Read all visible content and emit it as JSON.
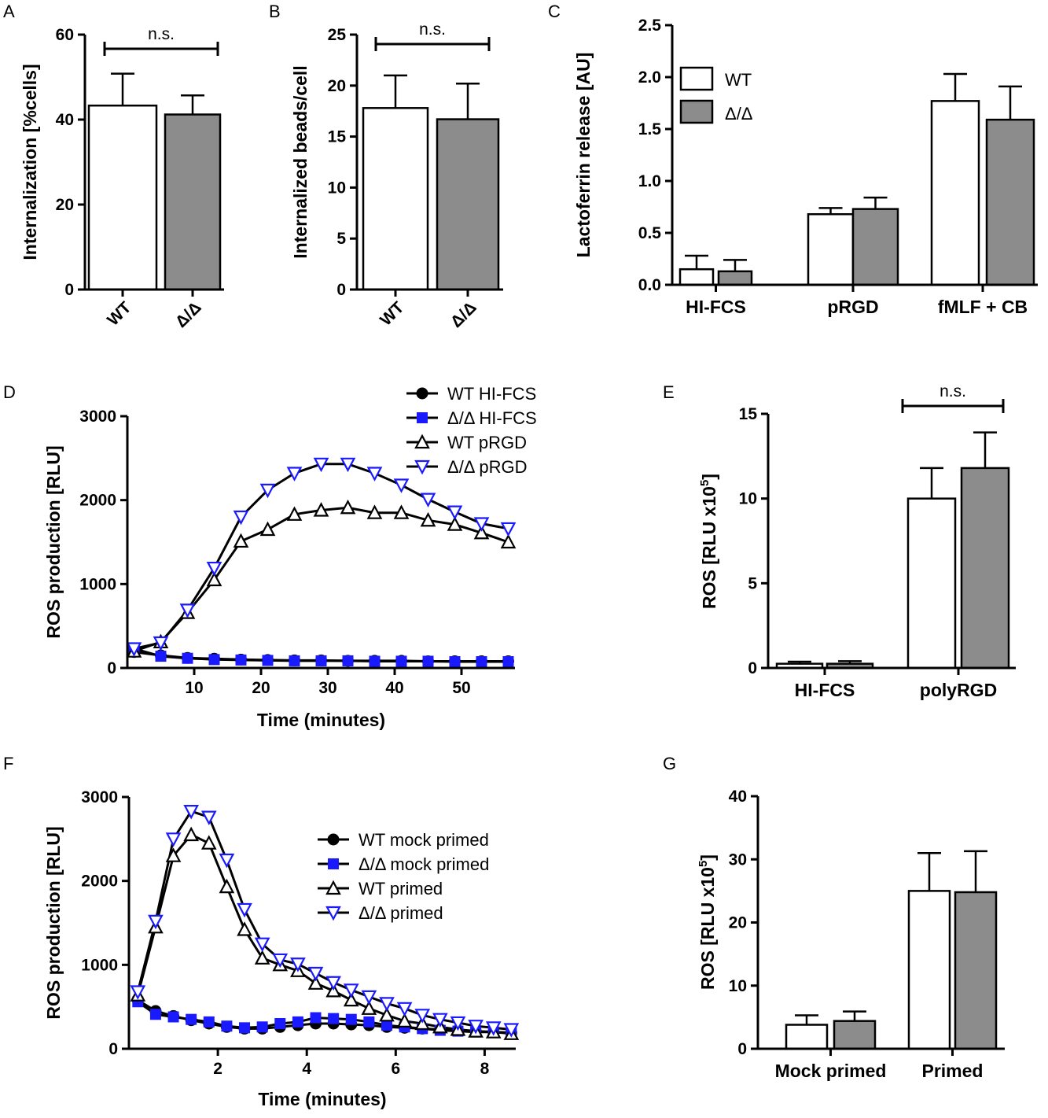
{
  "colors": {
    "wt_bar": "#ffffff",
    "mut_bar": "#8c8c8c",
    "axis": "#000000",
    "mut_line": "#1a1aff",
    "wt_line": "#000000"
  },
  "chart_data": [
    {
      "panel": "A",
      "type": "bar",
      "categories": [
        "WT",
        "Δ/Δ"
      ],
      "values": [
        43.3,
        41.2
      ],
      "errors": [
        7.5,
        4.5
      ],
      "ylabel": "Internalization [%cells]",
      "ylim": [
        0,
        60
      ],
      "yticks": [
        "0",
        "20",
        "40",
        "60"
      ],
      "annotation": "n.s."
    },
    {
      "panel": "B",
      "type": "bar",
      "categories": [
        "WT",
        "Δ/Δ"
      ],
      "values": [
        17.8,
        16.7
      ],
      "errors": [
        3.2,
        3.5
      ],
      "ylabel": "Internalized beads/cell",
      "ylim": [
        0,
        25
      ],
      "yticks": [
        "0",
        "5",
        "10",
        "15",
        "20",
        "25"
      ],
      "annotation": "n.s."
    },
    {
      "panel": "C",
      "type": "bar",
      "categories": [
        "HI-FCS",
        "pRGD",
        "fMLF + CB"
      ],
      "series": [
        {
          "name": "WT",
          "values": [
            0.15,
            0.68,
            1.77
          ],
          "errors": [
            0.13,
            0.06,
            0.26
          ]
        },
        {
          "name": "Δ/Δ",
          "values": [
            0.13,
            0.73,
            1.59
          ],
          "errors": [
            0.11,
            0.11,
            0.32
          ]
        }
      ],
      "ylabel": "Lactoferrin release [AU]",
      "ylim": [
        0,
        2.5
      ],
      "yticks": [
        "0.0",
        "0.5",
        "1.0",
        "1.5",
        "2.0",
        "2.5"
      ],
      "legend": [
        "WT",
        "Δ/Δ"
      ]
    },
    {
      "panel": "D",
      "type": "line",
      "x": [
        1,
        5,
        9,
        13,
        17,
        21,
        25,
        29,
        33,
        37,
        41,
        45,
        49,
        53,
        57
      ],
      "series": [
        {
          "name": "WT HI-FCS",
          "values": [
            190,
            150,
            120,
            110,
            100,
            95,
            90,
            90,
            85,
            85,
            85,
            80,
            80,
            80,
            80
          ]
        },
        {
          "name": "Δ/Δ HI-FCS",
          "values": [
            230,
            140,
            115,
            100,
            95,
            90,
            85,
            85,
            85,
            80,
            80,
            80,
            75,
            75,
            75
          ]
        },
        {
          "name": "WT pRGD",
          "values": [
            200,
            310,
            660,
            1050,
            1510,
            1650,
            1830,
            1880,
            1910,
            1850,
            1850,
            1760,
            1710,
            1610,
            1500
          ]
        },
        {
          "name": "Δ/Δ pRGD",
          "values": [
            230,
            300,
            690,
            1190,
            1800,
            2120,
            2320,
            2430,
            2430,
            2320,
            2180,
            2010,
            1860,
            1720,
            1660
          ]
        }
      ],
      "xlabel": "Time (minutes)",
      "ylabel": "ROS production [RLU]",
      "xlim": [
        0,
        58
      ],
      "ylim": [
        0,
        3000
      ],
      "xticks": [
        "10",
        "20",
        "30",
        "40",
        "50"
      ],
      "yticks": [
        "0",
        "1000",
        "2000",
        "3000"
      ],
      "legend": [
        "WT HI-FCS",
        "Δ/Δ HI-FCS",
        "WT pRGD",
        "Δ/Δ pRGD"
      ]
    },
    {
      "panel": "E",
      "type": "bar",
      "categories": [
        "HI-FCS",
        "polyRGD"
      ],
      "series": [
        {
          "name": "WT",
          "values": [
            0.25,
            10.0
          ],
          "errors": [
            0.12,
            1.8
          ]
        },
        {
          "name": "Δ/Δ",
          "values": [
            0.25,
            11.8
          ],
          "errors": [
            0.15,
            2.1
          ]
        }
      ],
      "ylabel": "ROS [RLU x10",
      "ylabel_sup": "5",
      "ylabel_end": "]",
      "ylim": [
        0,
        15
      ],
      "yticks": [
        "0",
        "5",
        "10",
        "15"
      ],
      "annotation": "n.s."
    },
    {
      "panel": "F",
      "type": "line",
      "x": [
        0.2,
        0.6,
        1.0,
        1.4,
        1.8,
        2.2,
        2.6,
        3.0,
        3.4,
        3.8,
        4.2,
        4.6,
        5.0,
        5.4,
        5.8,
        6.2,
        6.6,
        7.0,
        7.4,
        7.8,
        8.2,
        8.6
      ],
      "series": [
        {
          "name": "WT mock primed",
          "values": [
            580,
            450,
            390,
            340,
            300,
            260,
            240,
            240,
            260,
            280,
            300,
            300,
            290,
            280,
            260,
            250,
            240,
            230,
            220,
            210,
            200,
            190
          ]
        },
        {
          "name": "Δ/Δ mock primed",
          "values": [
            560,
            410,
            380,
            350,
            320,
            270,
            250,
            260,
            300,
            320,
            370,
            360,
            350,
            320,
            280,
            260,
            240,
            220,
            210,
            200,
            200,
            190
          ]
        },
        {
          "name": "WT primed",
          "values": [
            640,
            1450,
            2300,
            2550,
            2450,
            1930,
            1420,
            1080,
            1000,
            930,
            780,
            690,
            580,
            480,
            400,
            330,
            300,
            260,
            230,
            210,
            200,
            180
          ]
        },
        {
          "name": "Δ/Δ primed",
          "values": [
            680,
            1520,
            2500,
            2830,
            2760,
            2250,
            1660,
            1250,
            1060,
            1010,
            900,
            790,
            700,
            620,
            540,
            480,
            400,
            350,
            310,
            270,
            250,
            230
          ]
        }
      ],
      "xlabel": "Time (minutes)",
      "ylabel": "ROS production [RLU]",
      "xlim": [
        0,
        8.7
      ],
      "ylim": [
        0,
        3000
      ],
      "xticks": [
        "2",
        "4",
        "6",
        "8"
      ],
      "yticks": [
        "0",
        "1000",
        "2000",
        "3000"
      ],
      "legend": [
        "WT mock primed",
        "Δ/Δ mock primed",
        "WT primed",
        "Δ/Δ primed"
      ]
    },
    {
      "panel": "G",
      "type": "bar",
      "categories": [
        "Mock primed",
        "Primed"
      ],
      "series": [
        {
          "name": "WT",
          "values": [
            3.8,
            25.0
          ],
          "errors": [
            1.5,
            6.0
          ]
        },
        {
          "name": "Δ/Δ",
          "values": [
            4.4,
            24.8
          ],
          "errors": [
            1.5,
            6.5
          ]
        }
      ],
      "ylabel": "ROS [RLU x10",
      "ylabel_sup": "5",
      "ylabel_end": "]",
      "ylim": [
        0,
        40
      ],
      "yticks": [
        "0",
        "10",
        "20",
        "30",
        "40"
      ]
    }
  ]
}
